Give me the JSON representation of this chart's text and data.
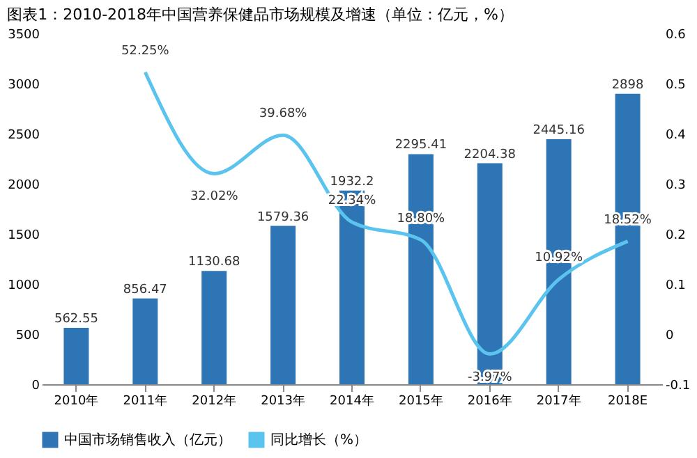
{
  "chart_data": {
    "type": "bar",
    "title": "图表1：2010-2018年中国营养保健品市场规模及增速（单位：亿元，%）",
    "categories": [
      "2010年",
      "2011年",
      "2012年",
      "2013年",
      "2014年",
      "2015年",
      "2016年",
      "2017年",
      "2018E"
    ],
    "series": [
      {
        "name": "中国市场销售收入（亿元）",
        "color": "#2e75b6",
        "values": [
          562.55,
          856.47,
          1130.68,
          1579.36,
          1932.2,
          2295.41,
          2204.38,
          2445.16,
          2898
        ]
      },
      {
        "name": "同比增长（%）",
        "type": "line",
        "axis": "y2",
        "color": "#5bc4ee",
        "line_style": "solid",
        "values": [
          null,
          0.5225,
          0.3202,
          0.3968,
          0.2234,
          0.188,
          -0.0397,
          0.1092,
          0.1852
        ],
        "value_labels": [
          null,
          "52.25%",
          "32.02%",
          "39.68%",
          "22.34%",
          "18.80%",
          "-3.97%",
          "10.92%",
          "18.52%"
        ]
      }
    ],
    "ylim": [
      0,
      3500
    ],
    "yticks": [
      0,
      500,
      1000,
      1500,
      2000,
      2500,
      3000,
      3500
    ],
    "y2lim": [
      -0.1,
      0.6
    ],
    "y2ticks": [
      -0.1,
      0,
      0.1,
      0.2,
      0.3,
      0.4,
      0.5,
      0.6
    ],
    "data_labels": true,
    "legend": "bottom",
    "grid": false,
    "marker": "none"
  }
}
